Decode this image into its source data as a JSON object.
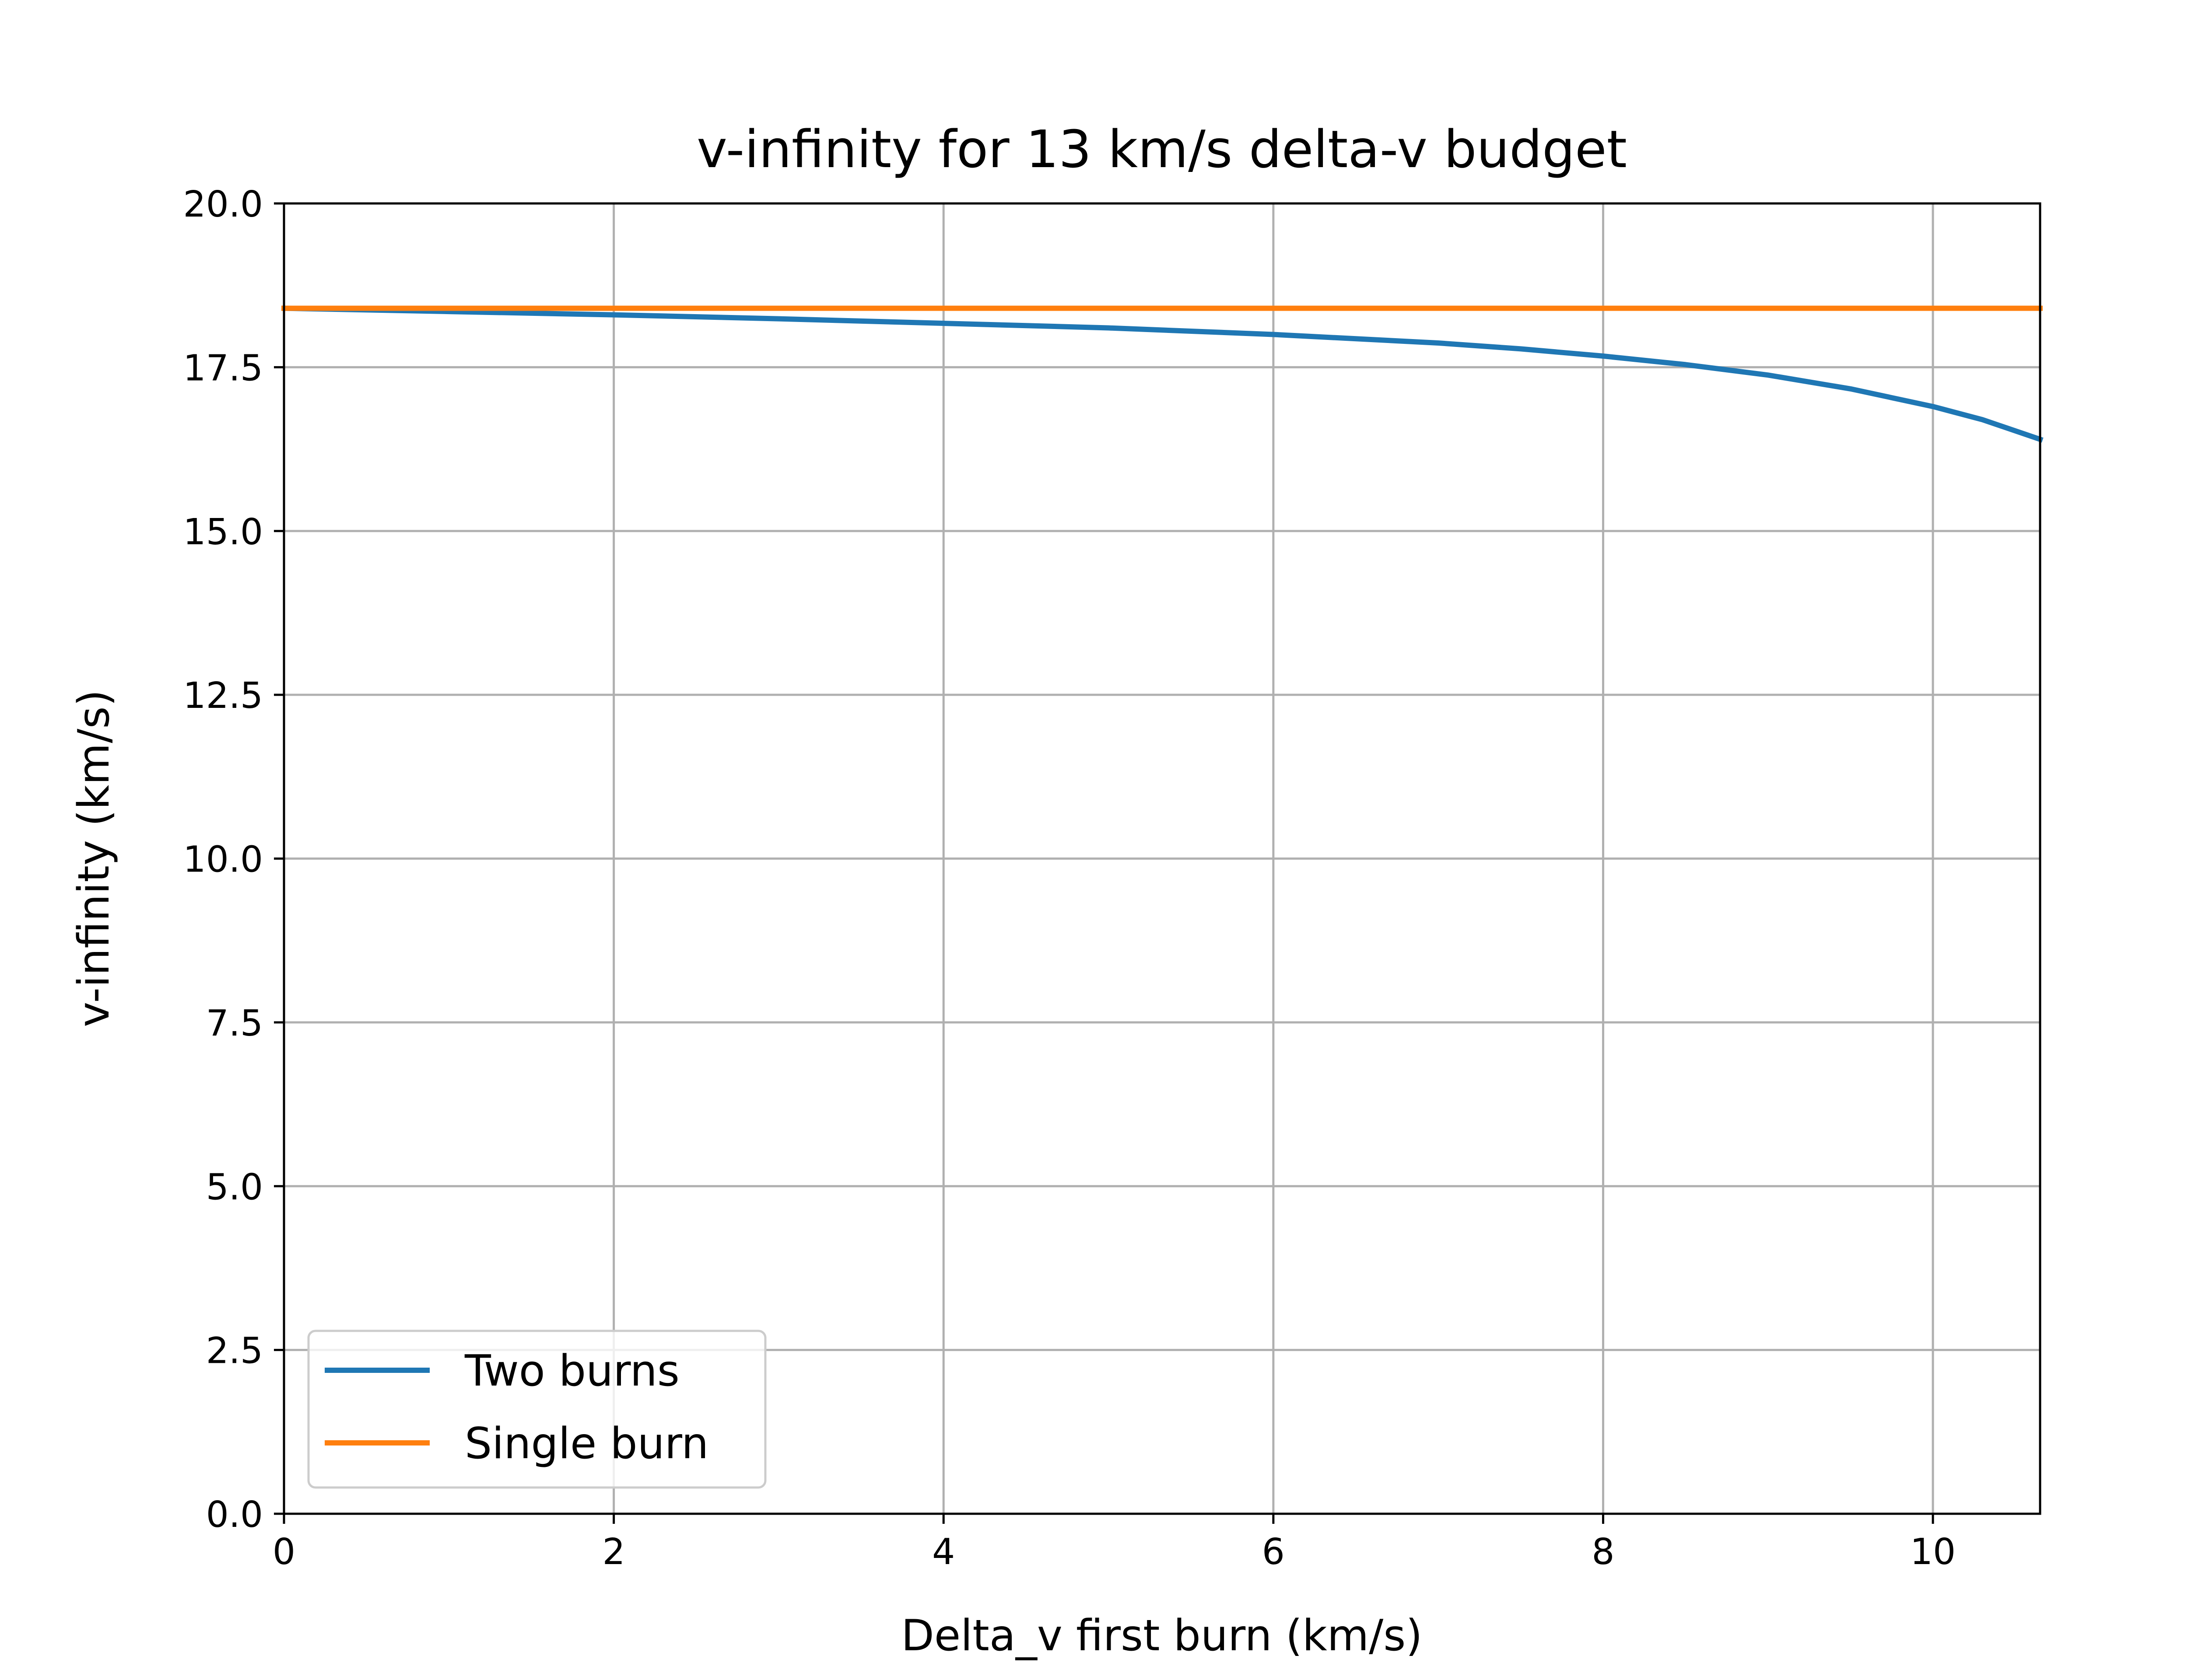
{
  "chart_data": {
    "type": "line",
    "title": "v-infinity for 13 km/s delta-v budget",
    "xlabel": "Delta_v first burn (km/s)",
    "ylabel": "v-infinity (km/s)",
    "xlim": [
      0,
      10.65
    ],
    "ylim": [
      0,
      20
    ],
    "x_ticks": [
      0,
      2,
      4,
      6,
      8,
      10
    ],
    "x_tick_labels": [
      "0",
      "2",
      "4",
      "6",
      "8",
      "10"
    ],
    "y_ticks": [
      0,
      2.5,
      5,
      7.5,
      10,
      12.5,
      15,
      17.5,
      20
    ],
    "y_tick_labels": [
      "0.0",
      "2.5",
      "5.0",
      "7.5",
      "10.0",
      "12.5",
      "15.0",
      "17.5",
      "20.0"
    ],
    "grid": true,
    "legend_position": "lower-left",
    "series": [
      {
        "name": "Two burns",
        "color": "#1f77b4",
        "x": [
          0,
          1,
          2,
          3,
          4,
          5,
          6,
          7,
          7.5,
          8,
          8.5,
          9,
          9.5,
          10,
          10.3,
          10.65
        ],
        "y": [
          18.4,
          18.35,
          18.3,
          18.24,
          18.17,
          18.1,
          18.0,
          17.87,
          17.78,
          17.67,
          17.54,
          17.38,
          17.17,
          16.9,
          16.7,
          16.4
        ]
      },
      {
        "name": "Single burn",
        "color": "#ff7f0e",
        "x": [
          0,
          10.65
        ],
        "y": [
          18.4,
          18.4
        ]
      }
    ]
  }
}
